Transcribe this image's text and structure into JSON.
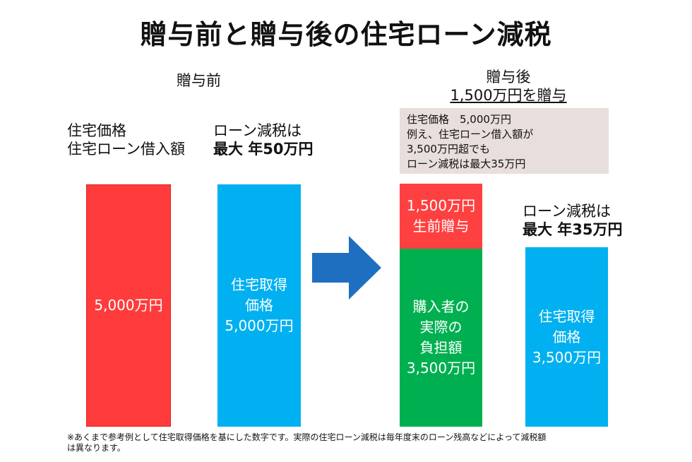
{
  "title": "贈与前と贈与後の住宅ローン減税",
  "before": {
    "heading": "贈与前",
    "left_label": [
      "住宅価格",
      "住宅ローン借入額"
    ],
    "tax_label": "ローン減税は",
    "tax_amount": "最大 年50万円",
    "red_bar_text": "5,000万円",
    "blue_bar_text": [
      "住宅取得",
      "価格",
      "5,000万円"
    ]
  },
  "after": {
    "heading": "贈与後",
    "subheading": "1,500万円を贈与",
    "note": [
      "住宅価格　5,000万円",
      "例え、住宅ローン借入額が",
      "3,500万円超でも",
      "ローン減税は最大35万円"
    ],
    "gift_bar_text": [
      "1,500万円",
      "生前贈与"
    ],
    "burden_bar_text": [
      "購入者の",
      "実際の",
      "負担額",
      "3,500万円"
    ],
    "tax_label": "ローン減税は",
    "tax_amount": "最大 年35万円",
    "blue_bar_text": [
      "住宅取得",
      "価格",
      "3,500万円"
    ]
  },
  "arrow_icon": "arrow-right-icon",
  "colors": {
    "red": "#ff3b3b",
    "blue": "#00b0f0",
    "green": "#00b050",
    "arrow": "#1f6fc0",
    "note_bg": "#e8dedb"
  },
  "footnote": [
    "※あくまで参考例として住宅取得価格を基にした数字です。実際の住宅ローン減税は毎年度末のローン残高などによって減税額",
    "は異なります。"
  ]
}
